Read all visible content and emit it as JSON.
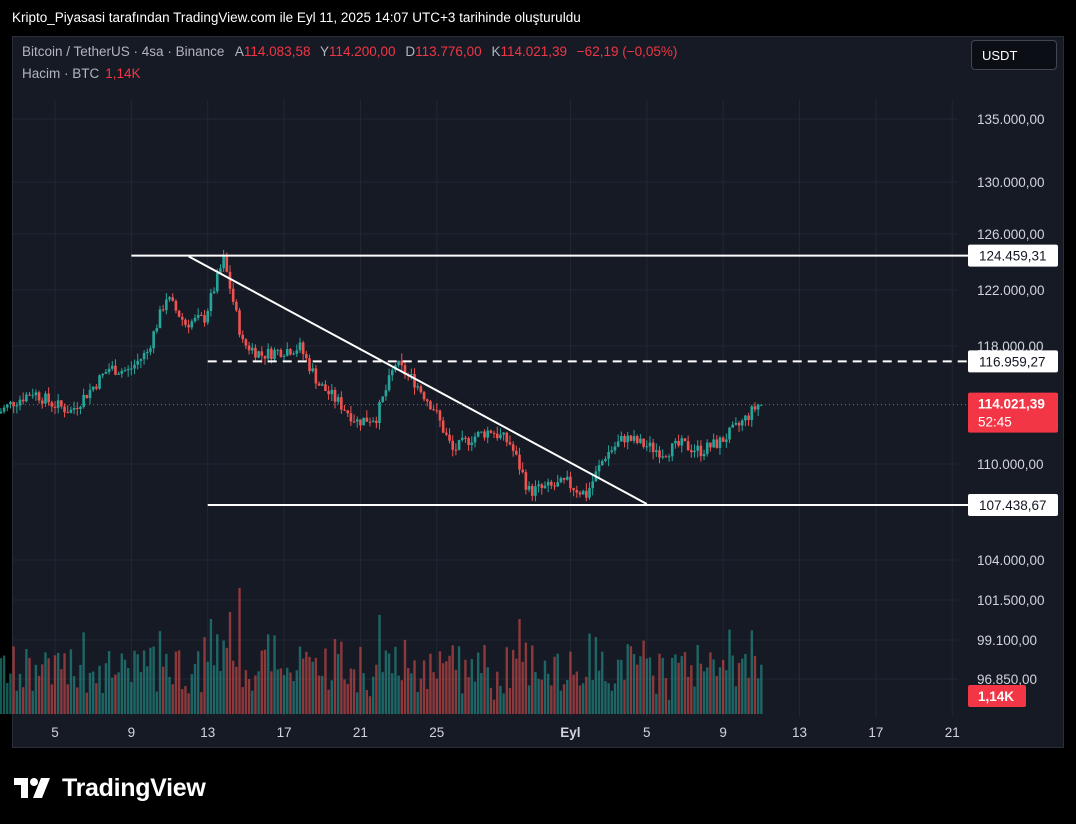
{
  "header": {
    "title": "Kripto_Piyasasi tarafından TradingView.com ile Eyl 11, 2025 14:07 UTC+3 tarihinde oluşturuldu"
  },
  "legend": {
    "symbol": "Bitcoin / TetherUS · 4sa · Binance",
    "open_label": "A",
    "open": "114.083,58",
    "high_label": "Y",
    "high": "114.200,00",
    "low_label": "D",
    "low": "113.776,00",
    "close_label": "K",
    "close": "114.021,39",
    "change": "−62,19 (−0,05%)",
    "volume_label": "Hacim · BTC",
    "volume": "1,14K"
  },
  "currency_button": "USDT",
  "colors": {
    "up": "#26a69a",
    "down": "#ef5350",
    "line": "#ffffff",
    "background": "#161a25",
    "price_tag": "#f23645"
  },
  "chart_data": {
    "type": "candlestick",
    "y_axis_ticks": [
      "135.000,00",
      "130.000,00",
      "126.000,00",
      "122.000,00",
      "118.000,00",
      "110.000,00",
      "104.000,00",
      "101.500,00",
      "99.100,00",
      "96.850,00"
    ],
    "y_axis_tick_values": [
      135000,
      130000,
      126000,
      122000,
      118000,
      110000,
      104000,
      101500,
      99100,
      96850
    ],
    "x_axis_labels": [
      "5",
      "9",
      "13",
      "17",
      "21",
      "25",
      "Eyl",
      "5",
      "9",
      "13",
      "17",
      "21"
    ],
    "x_axis_dates": [
      "2025-08-05",
      "2025-08-09",
      "2025-08-13",
      "2025-08-17",
      "2025-08-21",
      "2025-08-25",
      "2025-09-01",
      "2025-09-05",
      "2025-09-09",
      "2025-09-13",
      "2025-09-17",
      "2025-09-21"
    ],
    "x_range": [
      "2025-08-02",
      "2025-09-23"
    ],
    "interval": "4h",
    "horizontal_levels": [
      {
        "label": "124.459,31",
        "value": 124459.31,
        "style": "solid",
        "from": "2025-08-09",
        "to": "2025-09-23"
      },
      {
        "label": "116.959,27",
        "value": 116959.27,
        "style": "dashed",
        "from": "2025-08-13",
        "to": "2025-09-23"
      },
      {
        "label": "107.438,67",
        "value": 107438.67,
        "style": "solid",
        "from": "2025-08-13",
        "to": "2025-09-23"
      }
    ],
    "trendline": {
      "from": [
        "2025-08-12",
        124400
      ],
      "to": [
        "2025-09-05",
        107500
      ]
    },
    "current_price": {
      "label": "114.021,39",
      "value": 114021.39,
      "countdown": "52:45"
    },
    "current_volume": {
      "label": "1,14K"
    },
    "daily_path": [
      [
        "2025-08-02",
        113300
      ],
      [
        "2025-08-03",
        114200
      ],
      [
        "2025-08-04",
        114900
      ],
      [
        "2025-08-05",
        114100
      ],
      [
        "2025-08-06",
        113600
      ],
      [
        "2025-08-07",
        115000
      ],
      [
        "2025-08-08",
        116500
      ],
      [
        "2025-08-09",
        116300
      ],
      [
        "2025-08-10",
        117600
      ],
      [
        "2025-08-11",
        121500
      ],
      [
        "2025-08-12",
        119600
      ],
      [
        "2025-08-13",
        120000
      ],
      [
        "2025-08-14",
        124200
      ],
      [
        "2025-08-15",
        118200
      ],
      [
        "2025-08-16",
        117400
      ],
      [
        "2025-08-17",
        117700
      ],
      [
        "2025-08-18",
        117900
      ],
      [
        "2025-08-19",
        115400
      ],
      [
        "2025-08-20",
        114200
      ],
      [
        "2025-08-21",
        112900
      ],
      [
        "2025-08-22",
        113200
      ],
      [
        "2025-08-23",
        116800
      ],
      [
        "2025-08-24",
        115600
      ],
      [
        "2025-08-25",
        113800
      ],
      [
        "2025-08-26",
        110900
      ],
      [
        "2025-08-27",
        111800
      ],
      [
        "2025-08-28",
        112300
      ],
      [
        "2025-08-29",
        111400
      ],
      [
        "2025-08-30",
        108300
      ],
      [
        "2025-08-31",
        108500
      ],
      [
        "2025-09-01",
        108800
      ],
      [
        "2025-09-02",
        108100
      ],
      [
        "2025-09-03",
        110600
      ],
      [
        "2025-09-04",
        111800
      ],
      [
        "2025-09-05",
        111300
      ],
      [
        "2025-09-06",
        110800
      ],
      [
        "2025-09-07",
        111300
      ],
      [
        "2025-09-08",
        110900
      ],
      [
        "2025-09-09",
        111500
      ],
      [
        "2025-09-10",
        112600
      ],
      [
        "2025-09-11",
        114021
      ]
    ]
  }
}
